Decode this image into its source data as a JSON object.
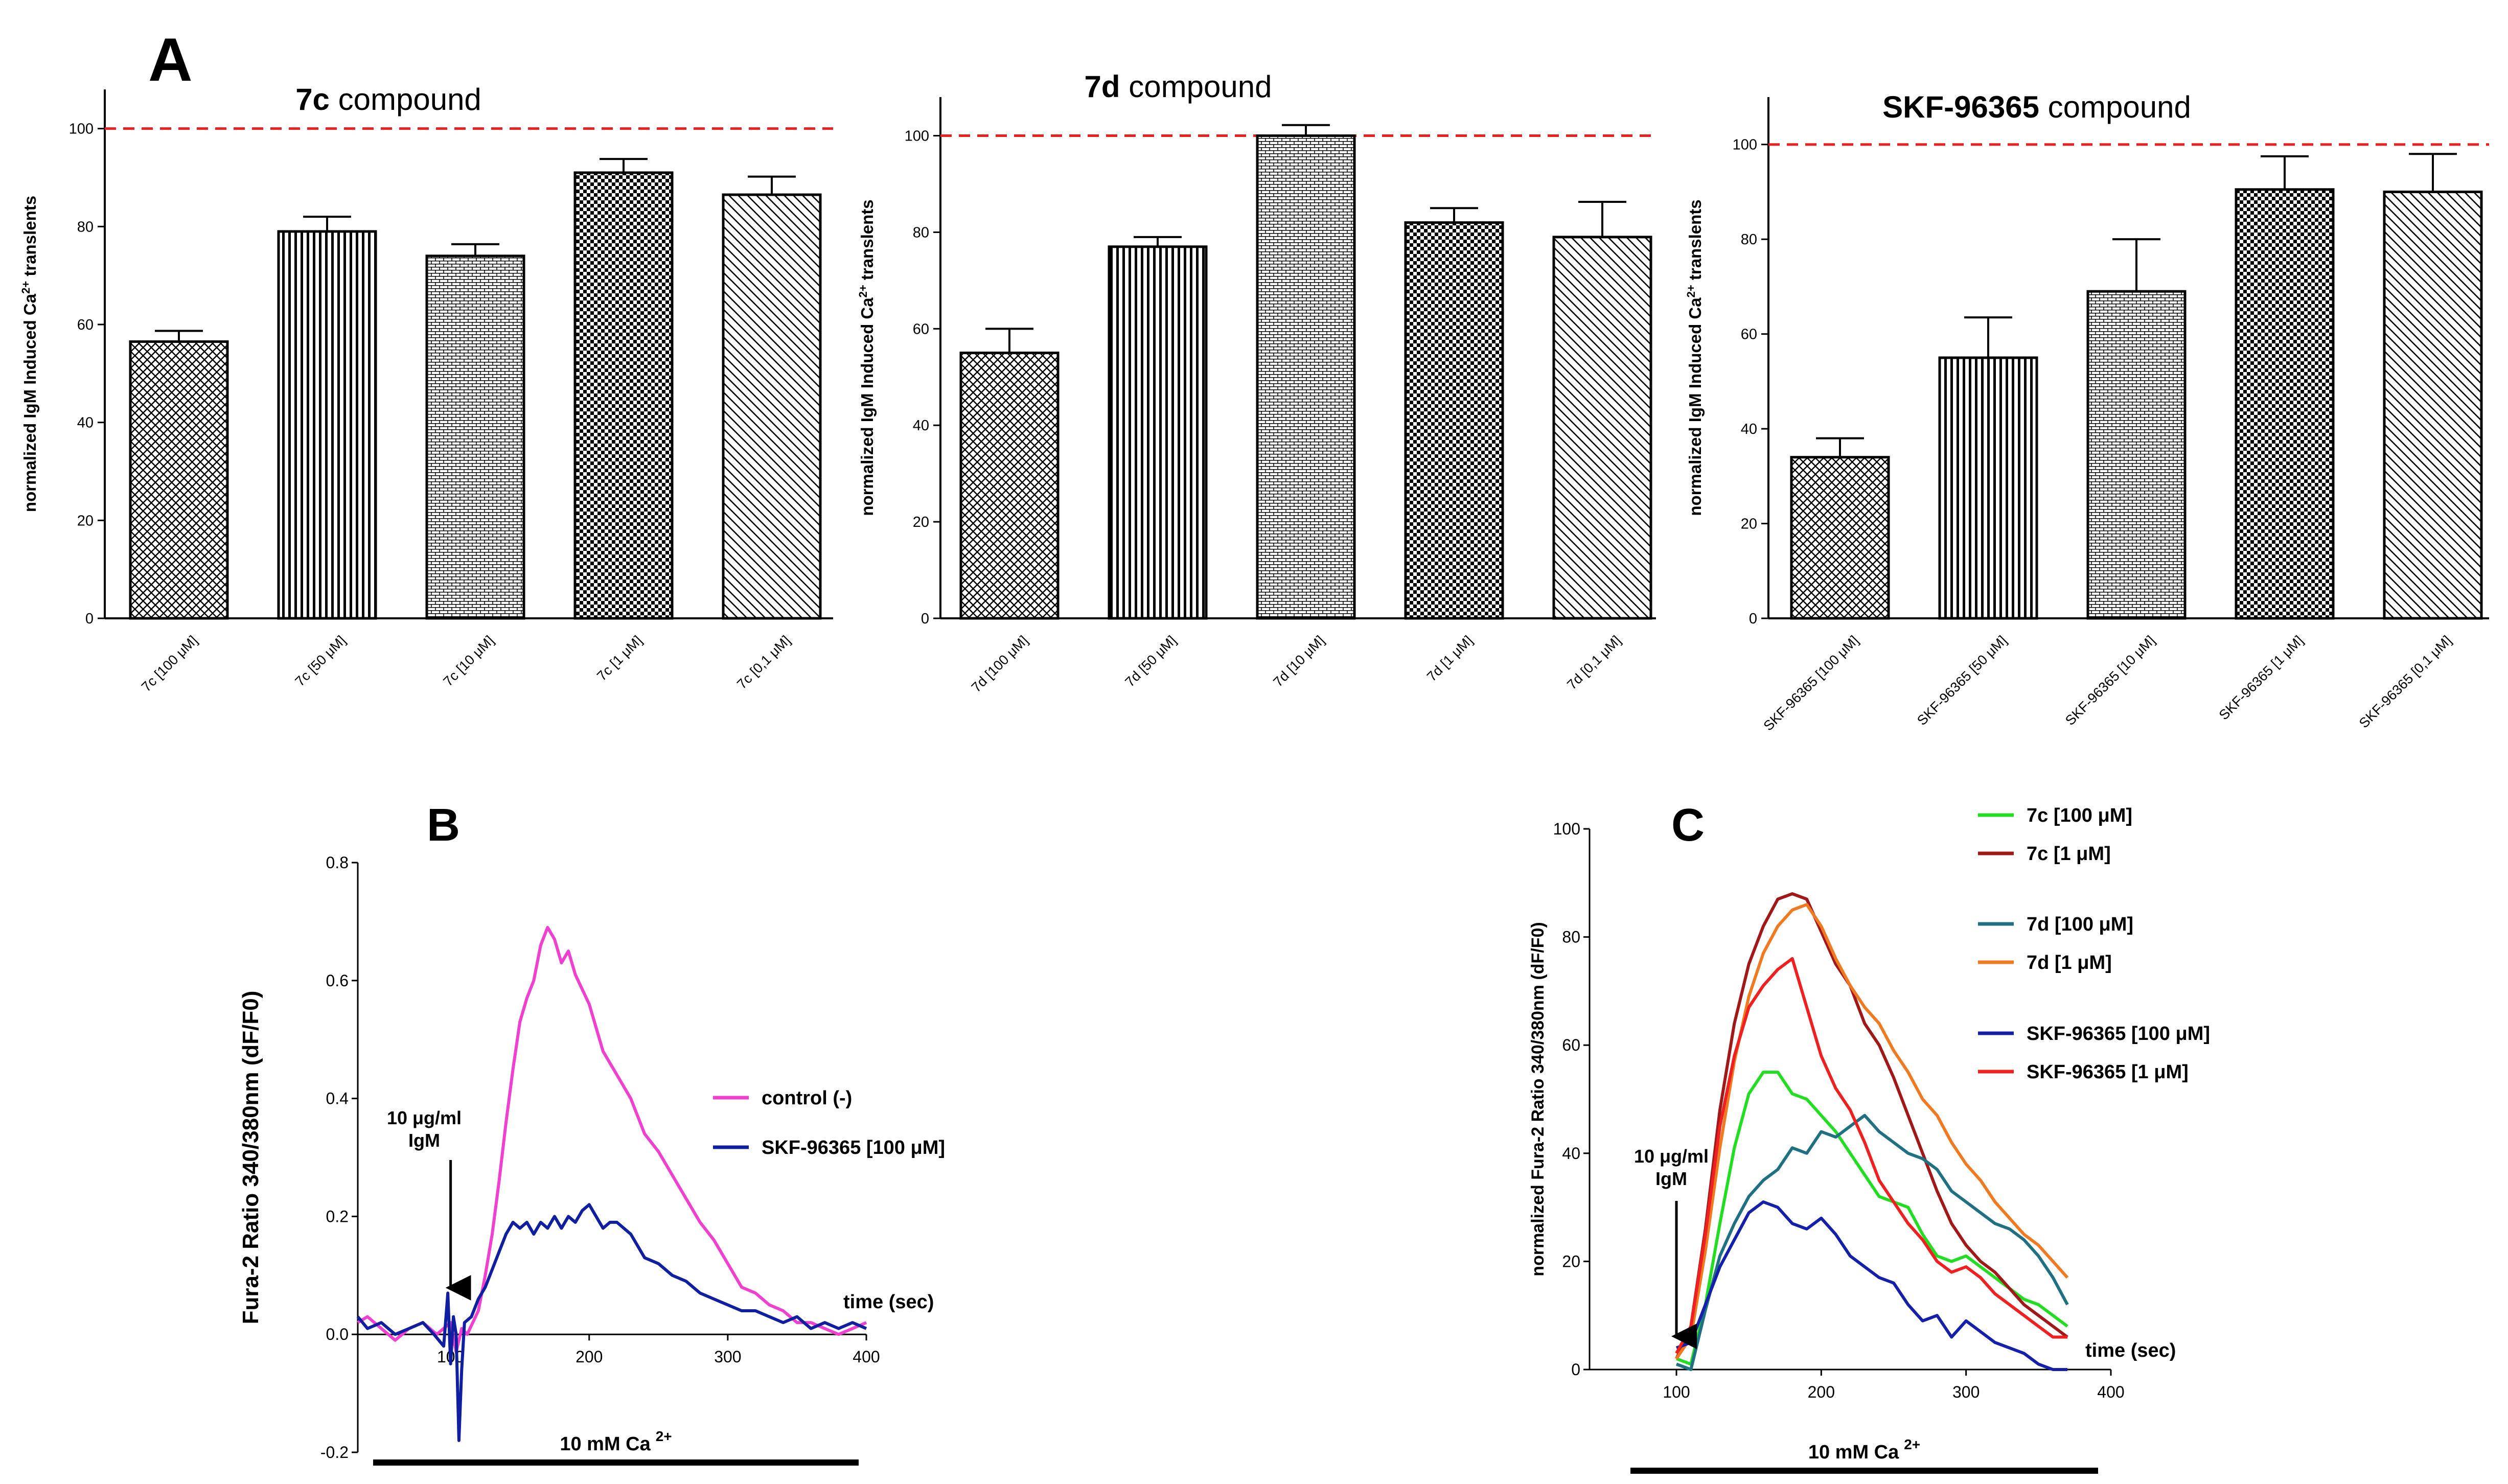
{
  "colors": {
    "reference_line": "#e8201f",
    "bar_edge": "#000000",
    "control": "#f040d0",
    "skf_b": "#101ea0",
    "c_7c_100": "#22dd22",
    "c_7c_1": "#a01818",
    "c_7d_100": "#1f7080",
    "c_7d_1": "#f07a22",
    "c_skf_100": "#1420aa",
    "c_skf_1": "#ee2020"
  },
  "panels": {
    "A": "A",
    "B": "B",
    "C": "C"
  },
  "chart_data": [
    {
      "panel": "A",
      "type": "bar",
      "title_bold": "7c",
      "title_rest": " compound",
      "ylabel": "normalized IgM Induced Ca2+ translents",
      "ylim": [
        0,
        108
      ],
      "yticks": [
        0,
        20,
        40,
        60,
        80,
        100
      ],
      "reference_value": 100,
      "categories": [
        "7c  [100 μM]",
        "7c  [50 μM]",
        "7c  [10 μM]",
        "7c  [1 μM]",
        "7c  [0,1 μM]"
      ],
      "values": [
        56.5,
        79,
        74,
        91,
        86.5
      ],
      "errors": [
        2.2,
        3,
        2.4,
        2.8,
        3.7
      ],
      "patterns": [
        "crosshatch",
        "vlines",
        "brick",
        "checker",
        "diag"
      ]
    },
    {
      "panel": "A",
      "type": "bar",
      "title_bold": "7d",
      "title_rest": " compound",
      "ylabel": "normalized IgM Induced Ca2+ translents",
      "ylim": [
        0,
        108
      ],
      "yticks": [
        0,
        20,
        40,
        60,
        80,
        100
      ],
      "reference_value": 100,
      "categories": [
        "7d  [100 μM]",
        "7d  [50 μM]",
        "7d  [10 μM]",
        "7d  [1 μM]",
        "7d  [0,1 μM]"
      ],
      "values": [
        55,
        77,
        100,
        82,
        79
      ],
      "errors": [
        5,
        2,
        2.2,
        3,
        7.3
      ],
      "patterns": [
        "crosshatch",
        "vlines",
        "brick",
        "checker",
        "diag"
      ]
    },
    {
      "panel": "A",
      "type": "bar",
      "title_bold": "SKF-96365",
      "title_rest": " compound",
      "ylabel": "normalized IgM Induced Ca2+ translents",
      "ylim": [
        0,
        110
      ],
      "yticks": [
        0,
        20,
        40,
        60,
        80,
        100
      ],
      "reference_value": 100,
      "categories": [
        "SKF-96365  [100 μM]",
        "SKF-96365  [50 μM]",
        "SKF-96365  [10 μM]",
        "SKF-96365  [1 μM]",
        "SKF-96365  [0,1 μM]"
      ],
      "values": [
        34,
        55,
        69,
        90.5,
        90
      ],
      "errors": [
        4,
        8.5,
        11,
        7,
        8
      ],
      "patterns": [
        "crosshatch",
        "vlines",
        "brick",
        "checker",
        "diag"
      ]
    },
    {
      "panel": "B",
      "type": "line",
      "ylabel": "Fura-2 Ratio 340/380nm (dF/F0)",
      "xlabel": "time (sec)",
      "xlim": [
        33,
        400
      ],
      "ylim": [
        -0.2,
        0.8
      ],
      "xticks": [
        100,
        200,
        300,
        400
      ],
      "yticks": [
        -0.2,
        0.0,
        0.2,
        0.4,
        0.6,
        0.8
      ],
      "annotation": "10 μg/ml\nIgM",
      "arrow_x": 100,
      "bar_label": "10 mM Ca",
      "bar_label_sup": "2+",
      "series": [
        {
          "name": "control (-)",
          "color": "#f040d0",
          "x": [
            33,
            40,
            50,
            60,
            70,
            80,
            90,
            95,
            100,
            104,
            108,
            112,
            116,
            120,
            125,
            130,
            135,
            140,
            145,
            150,
            155,
            160,
            165,
            170,
            175,
            180,
            185,
            190,
            200,
            210,
            220,
            230,
            240,
            250,
            260,
            270,
            280,
            290,
            300,
            310,
            320,
            330,
            340,
            350,
            360,
            370,
            380,
            390,
            400
          ],
          "y": [
            0.02,
            0.03,
            0.01,
            -0.01,
            0.01,
            0.02,
            0.0,
            0.01,
            0.02,
            -0.03,
            0.01,
            0.0,
            0.02,
            0.04,
            0.1,
            0.17,
            0.26,
            0.36,
            0.45,
            0.53,
            0.57,
            0.6,
            0.66,
            0.69,
            0.67,
            0.63,
            0.65,
            0.61,
            0.56,
            0.48,
            0.44,
            0.4,
            0.34,
            0.31,
            0.27,
            0.23,
            0.19,
            0.16,
            0.12,
            0.08,
            0.07,
            0.05,
            0.04,
            0.02,
            0.02,
            0.01,
            0.0,
            0.01,
            0.02
          ]
        },
        {
          "name": "SKF-96365  [100 μM]",
          "color": "#101ea0",
          "x": [
            33,
            40,
            50,
            60,
            70,
            80,
            88,
            95,
            98,
            100,
            102,
            104,
            106,
            108,
            110,
            115,
            120,
            125,
            130,
            135,
            140,
            145,
            150,
            155,
            160,
            165,
            170,
            175,
            180,
            185,
            190,
            195,
            200,
            205,
            210,
            215,
            220,
            230,
            240,
            250,
            260,
            270,
            280,
            290,
            300,
            310,
            320,
            330,
            340,
            350,
            360,
            370,
            380,
            390,
            400
          ],
          "y": [
            0.03,
            0.01,
            0.02,
            0.0,
            0.01,
            0.02,
            0.0,
            -0.02,
            0.07,
            -0.05,
            0.03,
            0.0,
            -0.18,
            -0.06,
            0.02,
            0.03,
            0.06,
            0.08,
            0.11,
            0.14,
            0.17,
            0.19,
            0.18,
            0.19,
            0.17,
            0.19,
            0.18,
            0.2,
            0.18,
            0.2,
            0.19,
            0.21,
            0.22,
            0.2,
            0.18,
            0.19,
            0.19,
            0.17,
            0.13,
            0.12,
            0.1,
            0.09,
            0.07,
            0.06,
            0.05,
            0.04,
            0.04,
            0.03,
            0.02,
            0.03,
            0.01,
            0.02,
            0.01,
            0.02,
            0.01
          ]
        }
      ]
    },
    {
      "panel": "C",
      "type": "line",
      "ylabel": "normalized Fura-2 Ratio 340/380nm (dF/F0)",
      "xlabel": "time (sec)",
      "xlim": [
        40,
        400
      ],
      "ylim": [
        0,
        100
      ],
      "xticks": [
        100,
        200,
        300,
        400
      ],
      "yticks": [
        0,
        20,
        40,
        60,
        80,
        100
      ],
      "annotation": "10 μg/ml\nIgM",
      "arrow_x": 100,
      "bar_label": "10 mM Ca",
      "bar_label_sup": "2+",
      "series": [
        {
          "name": "7c  [100 μM]",
          "color": "#22dd22",
          "x": [
            100,
            110,
            120,
            130,
            140,
            150,
            160,
            170,
            180,
            190,
            200,
            210,
            220,
            230,
            240,
            250,
            260,
            270,
            280,
            290,
            300,
            310,
            320,
            330,
            340,
            350,
            360,
            370
          ],
          "y": [
            2,
            1,
            12,
            27,
            41,
            51,
            55,
            55,
            51,
            50,
            47,
            44,
            40,
            36,
            32,
            31,
            30,
            25,
            21,
            20,
            21,
            19,
            17,
            15,
            13,
            12,
            10,
            8
          ]
        },
        {
          "name": "7c  [1 μM]",
          "color": "#a01818",
          "x": [
            100,
            110,
            120,
            130,
            140,
            150,
            160,
            170,
            180,
            190,
            200,
            210,
            220,
            230,
            240,
            250,
            260,
            270,
            280,
            290,
            300,
            310,
            320,
            330,
            340,
            350,
            360,
            370
          ],
          "y": [
            2,
            8,
            26,
            48,
            64,
            75,
            82,
            87,
            88,
            87,
            81,
            75,
            71,
            64,
            60,
            54,
            47,
            40,
            33,
            27,
            23,
            20,
            18,
            15,
            12,
            10,
            8,
            6
          ]
        },
        {
          "name": "7d  [100 μM]",
          "color": "#1f7080",
          "x": [
            100,
            110,
            120,
            130,
            140,
            150,
            160,
            170,
            180,
            190,
            200,
            210,
            220,
            230,
            240,
            250,
            260,
            270,
            280,
            290,
            300,
            310,
            320,
            330,
            340,
            350,
            360,
            370
          ],
          "y": [
            1,
            0,
            11,
            21,
            27,
            32,
            35,
            37,
            41,
            40,
            44,
            43,
            45,
            47,
            44,
            42,
            40,
            39,
            37,
            33,
            31,
            29,
            27,
            26,
            24,
            21,
            17,
            12
          ]
        },
        {
          "name": "7d  [1 μM]",
          "color": "#f07a22",
          "x": [
            100,
            110,
            120,
            130,
            140,
            150,
            160,
            170,
            180,
            190,
            200,
            210,
            220,
            230,
            240,
            250,
            260,
            270,
            280,
            290,
            300,
            310,
            320,
            330,
            340,
            350,
            360,
            370
          ],
          "y": [
            2,
            6,
            22,
            41,
            57,
            69,
            77,
            82,
            85,
            86,
            82,
            76,
            71,
            67,
            64,
            59,
            55,
            50,
            47,
            42,
            38,
            35,
            31,
            28,
            25,
            23,
            20,
            17
          ]
        },
        {
          "name": "SKF-96365  [100 μM]",
          "color": "#1420aa",
          "x": [
            100,
            110,
            120,
            130,
            140,
            150,
            160,
            170,
            180,
            190,
            200,
            210,
            220,
            230,
            240,
            250,
            260,
            270,
            280,
            290,
            300,
            310,
            320,
            330,
            340,
            350,
            360,
            370
          ],
          "y": [
            4,
            5,
            12,
            19,
            24,
            29,
            31,
            30,
            27,
            26,
            28,
            25,
            21,
            19,
            17,
            16,
            12,
            9,
            10,
            6,
            9,
            7,
            5,
            4,
            3,
            1,
            0,
            0
          ]
        },
        {
          "name": "SKF-96365  [1 μM]",
          "color": "#ee2020",
          "x": [
            100,
            110,
            120,
            130,
            140,
            150,
            160,
            170,
            180,
            190,
            200,
            210,
            220,
            230,
            240,
            250,
            260,
            270,
            280,
            290,
            300,
            310,
            320,
            330,
            340,
            350,
            360,
            370
          ],
          "y": [
            3,
            8,
            25,
            45,
            58,
            67,
            71,
            74,
            76,
            67,
            58,
            52,
            48,
            42,
            35,
            31,
            27,
            24,
            20,
            18,
            19,
            17,
            14,
            12,
            10,
            8,
            6,
            6
          ]
        }
      ]
    }
  ]
}
